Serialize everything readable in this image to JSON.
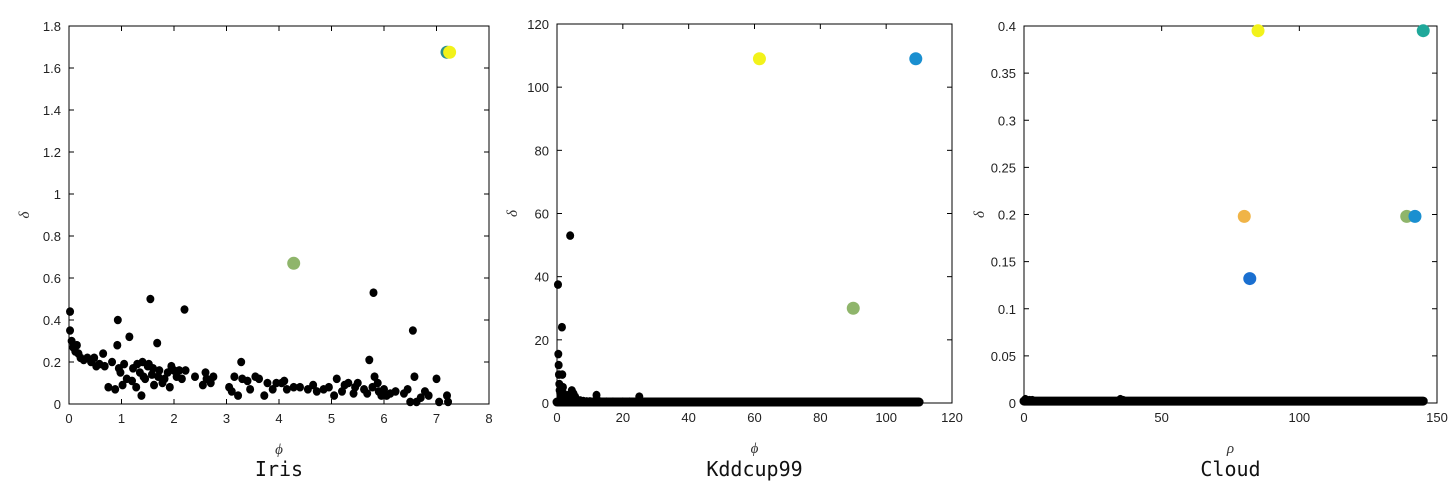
{
  "chart_data": [
    {
      "type": "scatter",
      "title": "Iris",
      "xlabel": "ϕ",
      "ylabel": "δ",
      "xlim": [
        0,
        8
      ],
      "ylim": [
        0,
        1.8
      ],
      "xticks": [
        0,
        1,
        2,
        3,
        4,
        5,
        6,
        7,
        8
      ],
      "yticks": [
        0,
        0.2,
        0.4,
        0.6,
        0.8,
        1,
        1.2,
        1.4,
        1.6,
        1.8
      ],
      "xtick_labels": [
        "0",
        "1",
        "2",
        "3",
        "4",
        "5",
        "6",
        "7",
        "8"
      ],
      "ytick_labels": [
        "0",
        "0.2",
        "0.4",
        "0.6",
        "0.8",
        "1",
        "1.2",
        "1.4",
        "1.6",
        "1.8"
      ],
      "grid": false,
      "highlighted": [
        {
          "x": 7.2,
          "y": 1.675,
          "color": "#2a8f8f"
        },
        {
          "x": 7.25,
          "y": 1.675,
          "color": "#f2f21a"
        },
        {
          "x": 4.28,
          "y": 0.67,
          "color": "#8fb56b"
        }
      ],
      "points": [
        [
          0.02,
          0.44
        ],
        [
          0.02,
          0.35
        ],
        [
          0.05,
          0.3
        ],
        [
          0.08,
          0.27
        ],
        [
          0.12,
          0.25
        ],
        [
          0.15,
          0.28
        ],
        [
          0.18,
          0.24
        ],
        [
          0.22,
          0.22
        ],
        [
          0.28,
          0.21
        ],
        [
          0.35,
          0.22
        ],
        [
          0.42,
          0.2
        ],
        [
          0.48,
          0.22
        ],
        [
          0.52,
          0.18
        ],
        [
          0.58,
          0.19
        ],
        [
          0.65,
          0.24
        ],
        [
          0.68,
          0.18
        ],
        [
          0.75,
          0.08
        ],
        [
          0.82,
          0.2
        ],
        [
          0.88,
          0.07
        ],
        [
          0.92,
          0.28
        ],
        [
          0.93,
          0.4
        ],
        [
          0.95,
          0.17
        ],
        [
          0.98,
          0.15
        ],
        [
          1.02,
          0.09
        ],
        [
          1.05,
          0.19
        ],
        [
          1.1,
          0.12
        ],
        [
          1.15,
          0.32
        ],
        [
          1.2,
          0.11
        ],
        [
          1.22,
          0.17
        ],
        [
          1.28,
          0.08
        ],
        [
          1.3,
          0.19
        ],
        [
          1.35,
          0.15
        ],
        [
          1.38,
          0.04
        ],
        [
          1.4,
          0.2
        ],
        [
          1.42,
          0.13
        ],
        [
          1.45,
          0.12
        ],
        [
          1.5,
          0.18
        ],
        [
          1.52,
          0.19
        ],
        [
          1.55,
          0.5
        ],
        [
          1.58,
          0.14
        ],
        [
          1.6,
          0.17
        ],
        [
          1.62,
          0.09
        ],
        [
          1.68,
          0.29
        ],
        [
          1.7,
          0.13
        ],
        [
          1.72,
          0.16
        ],
        [
          1.78,
          0.1
        ],
        [
          1.82,
          0.12
        ],
        [
          1.88,
          0.15
        ],
        [
          1.92,
          0.08
        ],
        [
          1.95,
          0.18
        ],
        [
          2.0,
          0.16
        ],
        [
          2.05,
          0.13
        ],
        [
          2.1,
          0.16
        ],
        [
          2.15,
          0.12
        ],
        [
          2.2,
          0.45
        ],
        [
          2.22,
          0.16
        ],
        [
          2.4,
          0.13
        ],
        [
          2.55,
          0.09
        ],
        [
          2.6,
          0.15
        ],
        [
          2.62,
          0.12
        ],
        [
          2.7,
          0.1
        ],
        [
          2.75,
          0.13
        ],
        [
          3.05,
          0.08
        ],
        [
          3.1,
          0.06
        ],
        [
          3.15,
          0.13
        ],
        [
          3.22,
          0.04
        ],
        [
          3.28,
          0.2
        ],
        [
          3.3,
          0.12
        ],
        [
          3.4,
          0.11
        ],
        [
          3.45,
          0.07
        ],
        [
          3.55,
          0.13
        ],
        [
          3.62,
          0.12
        ],
        [
          3.72,
          0.04
        ],
        [
          3.78,
          0.1
        ],
        [
          3.88,
          0.07
        ],
        [
          3.95,
          0.1
        ],
        [
          4.05,
          0.1
        ],
        [
          4.1,
          0.11
        ],
        [
          4.15,
          0.07
        ],
        [
          4.28,
          0.08
        ],
        [
          4.4,
          0.08
        ],
        [
          4.55,
          0.07
        ],
        [
          4.65,
          0.09
        ],
        [
          4.72,
          0.06
        ],
        [
          4.85,
          0.07
        ],
        [
          4.95,
          0.08
        ],
        [
          5.05,
          0.04
        ],
        [
          5.1,
          0.12
        ],
        [
          5.2,
          0.06
        ],
        [
          5.25,
          0.09
        ],
        [
          5.32,
          0.1
        ],
        [
          5.42,
          0.05
        ],
        [
          5.45,
          0.08
        ],
        [
          5.5,
          0.1
        ],
        [
          5.62,
          0.07
        ],
        [
          5.68,
          0.05
        ],
        [
          5.72,
          0.21
        ],
        [
          5.78,
          0.08
        ],
        [
          5.8,
          0.53
        ],
        [
          5.82,
          0.13
        ],
        [
          5.88,
          0.1
        ],
        [
          5.9,
          0.06
        ],
        [
          5.95,
          0.04
        ],
        [
          6.0,
          0.07
        ],
        [
          6.05,
          0.04
        ],
        [
          6.12,
          0.05
        ],
        [
          6.22,
          0.06
        ],
        [
          6.38,
          0.05
        ],
        [
          6.45,
          0.07
        ],
        [
          6.5,
          0.01
        ],
        [
          6.55,
          0.35
        ],
        [
          6.58,
          0.13
        ],
        [
          6.62,
          0.01
        ],
        [
          6.7,
          0.03
        ],
        [
          6.78,
          0.06
        ],
        [
          6.85,
          0.04
        ],
        [
          7.0,
          0.12
        ],
        [
          7.05,
          0.01
        ],
        [
          7.2,
          0.04
        ],
        [
          7.22,
          0.01
        ]
      ]
    },
    {
      "type": "scatter",
      "title": "Kddcup99",
      "xlabel": "ϕ",
      "ylabel": "δ",
      "xlim": [
        0,
        120
      ],
      "ylim": [
        0,
        120
      ],
      "xticks": [
        0,
        20,
        40,
        60,
        80,
        100,
        120
      ],
      "yticks": [
        0,
        20,
        40,
        60,
        80,
        100,
        120
      ],
      "xtick_labels": [
        "0",
        "20",
        "40",
        "60",
        "80",
        "100",
        "120"
      ],
      "ytick_labels": [
        "0",
        "20",
        "40",
        "60",
        "80",
        "100",
        "120"
      ],
      "grid": false,
      "highlighted": [
        {
          "x": 61.5,
          "y": 109,
          "color": "#f2f21a"
        },
        {
          "x": 109,
          "y": 109,
          "color": "#1a8fd0"
        },
        {
          "x": 90,
          "y": 30,
          "color": "#8fb56b"
        }
      ],
      "points": [
        [
          0.3,
          37.5
        ],
        [
          0.4,
          15.5
        ],
        [
          0.5,
          12
        ],
        [
          0.6,
          9
        ],
        [
          0.7,
          6
        ],
        [
          0.8,
          4
        ],
        [
          1.0,
          3
        ],
        [
          1.2,
          2
        ],
        [
          1.5,
          24
        ],
        [
          1.6,
          9
        ],
        [
          1.8,
          5
        ],
        [
          2.0,
          3
        ],
        [
          2.2,
          2
        ],
        [
          2.5,
          1.5
        ],
        [
          3.0,
          1
        ],
        [
          3.5,
          2.5
        ],
        [
          4.0,
          53
        ],
        [
          4.5,
          4
        ],
        [
          5.0,
          3
        ],
        [
          5.5,
          2
        ],
        [
          6.0,
          1
        ],
        [
          7.0,
          0.8
        ],
        [
          8.0,
          0.6
        ],
        [
          9.0,
          0.5
        ],
        [
          10.0,
          0.5
        ],
        [
          12.0,
          2.5
        ],
        [
          13.0,
          0.5
        ],
        [
          15.0,
          0.4
        ],
        [
          17.0,
          0.4
        ],
        [
          20.0,
          0.4
        ],
        [
          22.0,
          0.4
        ],
        [
          25.0,
          2
        ],
        [
          26.0,
          0.4
        ]
      ],
      "baseline": {
        "x_from": 0,
        "x_to": 110,
        "y": 0.3
      }
    },
    {
      "type": "scatter",
      "title": "Cloud",
      "xlabel": "ρ",
      "ylabel": "δ",
      "xlim": [
        0,
        150
      ],
      "ylim": [
        0,
        0.4
      ],
      "xticks": [
        0,
        50,
        100,
        150
      ],
      "yticks": [
        0,
        0.05,
        0.1,
        0.15,
        0.2,
        0.25,
        0.3,
        0.35,
        0.4
      ],
      "xtick_labels": [
        "0",
        "50",
        "100",
        "150"
      ],
      "ytick_labels": [
        "0",
        "0.05",
        "0.1",
        "0.15",
        "0.2",
        "0.25",
        "0.3",
        "0.35",
        "0.4"
      ],
      "grid": false,
      "highlighted": [
        {
          "x": 85,
          "y": 0.395,
          "color": "#f2f21a"
        },
        {
          "x": 145,
          "y": 0.395,
          "color": "#1fa89a"
        },
        {
          "x": 80,
          "y": 0.198,
          "color": "#f0b447"
        },
        {
          "x": 139,
          "y": 0.198,
          "color": "#8fb56b"
        },
        {
          "x": 142,
          "y": 0.198,
          "color": "#1a8fd0"
        },
        {
          "x": 82,
          "y": 0.132,
          "color": "#1a6fd0"
        }
      ],
      "points": [
        [
          0.5,
          0.004
        ],
        [
          1.0,
          0.003
        ],
        [
          2.0,
          0.003
        ],
        [
          3.0,
          0.003
        ],
        [
          35,
          0.004
        ],
        [
          36,
          0.003
        ]
      ],
      "baseline": {
        "x_from": 0,
        "x_to": 145,
        "y": 0.002
      }
    }
  ],
  "colors": {
    "point": "#000000",
    "axis": "#000000"
  }
}
